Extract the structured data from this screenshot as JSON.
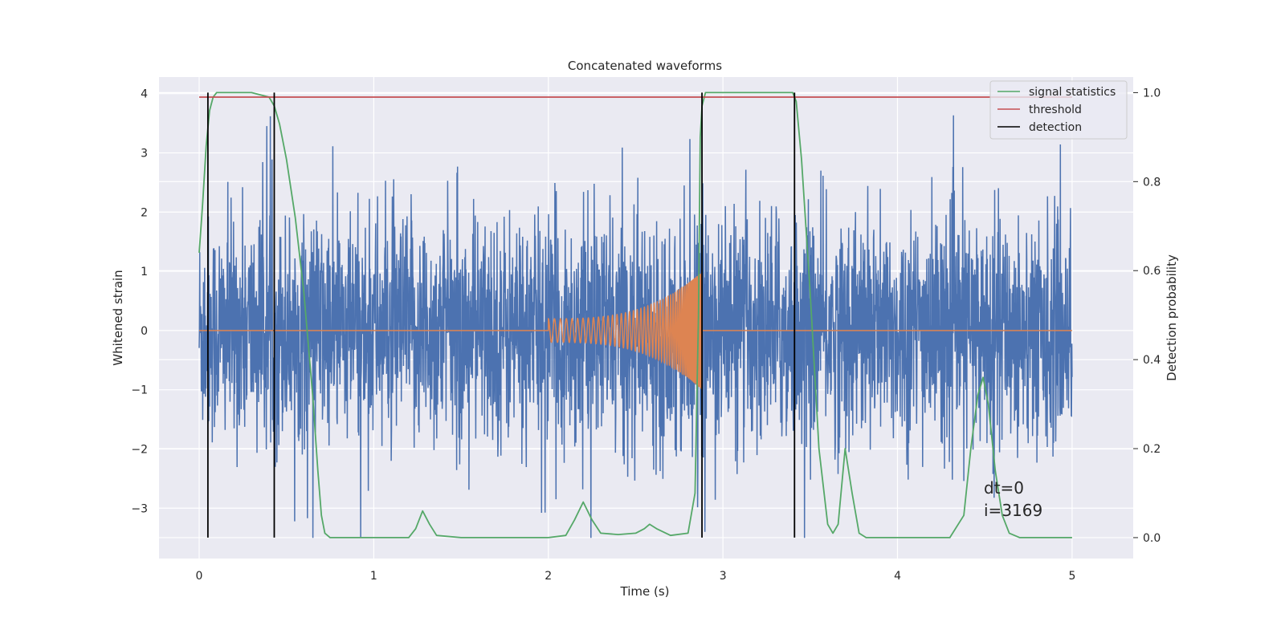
{
  "chart_data": {
    "type": "line",
    "title": "Concatenated waveforms",
    "xlabel": "Time (s)",
    "ylabel": "Whitened strain",
    "ylabel_right": "Detection probability",
    "xlim": [
      -0.23,
      5.35
    ],
    "ylim": [
      -3.85,
      4.28
    ],
    "ylim_right": [
      -0.047,
      1.035
    ],
    "x_ticks": [
      0,
      1,
      2,
      3,
      4,
      5
    ],
    "y_ticks": [
      -3,
      -2,
      -1,
      0,
      1,
      2,
      3,
      4
    ],
    "y_ticks_right": [
      0.0,
      0.2,
      0.4,
      0.6,
      0.8,
      1.0
    ],
    "x_tick_labels": [
      "0",
      "1",
      "2",
      "3",
      "4",
      "5"
    ],
    "y_tick_labels": [
      "−3",
      "−2",
      "−1",
      "0",
      "1",
      "2",
      "3",
      "4"
    ],
    "y_tick_labels_right": [
      "0.0",
      "0.2",
      "0.4",
      "0.6",
      "0.8",
      "1.0"
    ],
    "grid": true,
    "legend_position": "top-right",
    "series": [
      {
        "name": "",
        "axis": "left",
        "color": "#4c72b0",
        "kind": "noise",
        "x_range": [
          0,
          5
        ],
        "approx_range": [
          -3.5,
          3.9
        ]
      },
      {
        "name": "",
        "axis": "left",
        "color": "#dd8452",
        "kind": "chirp",
        "x_range": [
          0,
          5
        ],
        "chirp_start": 2.0,
        "chirp_end": 2.88,
        "start_amplitude": 0.2,
        "end_amplitude": 1.0
      },
      {
        "name": "signal statistics",
        "axis": "right",
        "color": "#55a868",
        "x": [
          0,
          0.02,
          0.04,
          0.06,
          0.08,
          0.1,
          0.2,
          0.3,
          0.4,
          0.43,
          0.46,
          0.5,
          0.55,
          0.6,
          0.65,
          0.68,
          0.7,
          0.72,
          0.75,
          0.8,
          1.0,
          1.2,
          1.24,
          1.28,
          1.32,
          1.36,
          1.5,
          1.8,
          2.0,
          2.1,
          2.15,
          2.2,
          2.25,
          2.3,
          2.4,
          2.5,
          2.55,
          2.58,
          2.62,
          2.7,
          2.8,
          2.84,
          2.86,
          2.87,
          2.88,
          2.9,
          3.0,
          3.2,
          3.4,
          3.42,
          3.45,
          3.5,
          3.55,
          3.6,
          3.63,
          3.66,
          3.7,
          3.74,
          3.78,
          3.82,
          3.9,
          4.1,
          4.3,
          4.38,
          4.42,
          4.46,
          4.49,
          4.52,
          4.56,
          4.6,
          4.64,
          4.7,
          5.0
        ],
        "y": [
          0.64,
          0.75,
          0.88,
          0.96,
          0.99,
          1.0,
          1.0,
          1.0,
          0.99,
          0.97,
          0.93,
          0.85,
          0.72,
          0.55,
          0.32,
          0.15,
          0.05,
          0.01,
          0.0,
          0.0,
          0.0,
          0.0,
          0.02,
          0.06,
          0.03,
          0.005,
          0.0,
          0.0,
          0.0,
          0.005,
          0.04,
          0.08,
          0.04,
          0.01,
          0.007,
          0.01,
          0.02,
          0.03,
          0.02,
          0.005,
          0.01,
          0.1,
          0.5,
          0.9,
          0.97,
          1.0,
          1.0,
          1.0,
          1.0,
          0.98,
          0.85,
          0.55,
          0.2,
          0.03,
          0.01,
          0.03,
          0.2,
          0.1,
          0.01,
          0.0,
          0.0,
          0.0,
          0.0,
          0.05,
          0.2,
          0.32,
          0.36,
          0.3,
          0.15,
          0.05,
          0.01,
          0.0,
          0.0
        ]
      },
      {
        "name": "threshold",
        "axis": "right",
        "color": "#c44e52",
        "x": [
          0,
          5
        ],
        "y": [
          0.99,
          0.99
        ]
      },
      {
        "name": "detection",
        "axis": "right",
        "color": "#000000",
        "kind": "vertical_lines",
        "x": [
          0.05,
          0.43,
          2.88,
          3.41
        ],
        "y_range": [
          0.0,
          1.0
        ]
      }
    ],
    "annotations": [
      "dt=0",
      "i=3169"
    ]
  }
}
